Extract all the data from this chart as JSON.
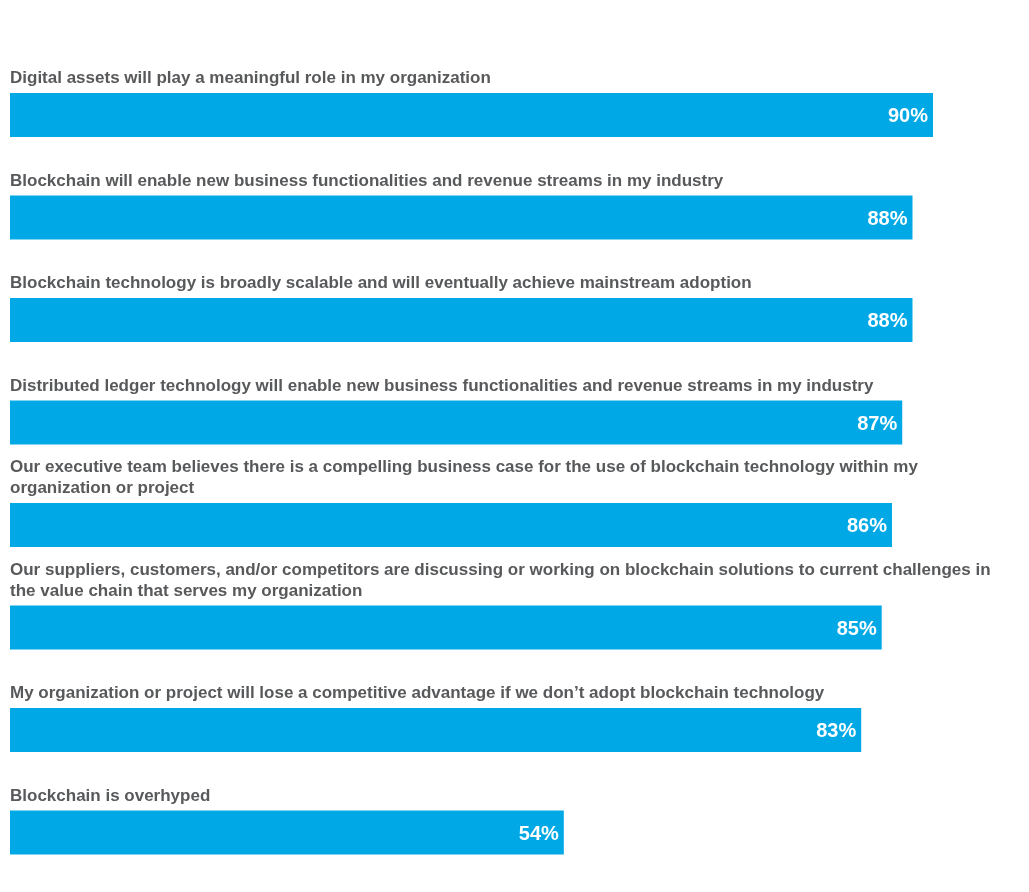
{
  "chart_data": {
    "type": "bar",
    "orientation": "horizontal",
    "categories": [
      "Digital assets will play a meaningful role in my organization",
      "Blockchain will enable new business functionalities and revenue streams in my industry",
      "Blockchain technology is broadly scalable and will eventually achieve mainstream adoption",
      "Distributed ledger technology will enable new business functionalities and revenue streams in my industry",
      "Our executive team believes there is a compelling business case for the use of blockchain technology within my organization or project",
      "Our suppliers, customers, and/or competitors are discussing or working on blockchain solutions to current challenges in the value chain that serves my organization",
      "My organization or project will lose a competitive advantage if we don’t adopt blockchain technology",
      "Blockchain is overhyped"
    ],
    "values": [
      90,
      88,
      88,
      87,
      86,
      85,
      83,
      54
    ],
    "value_labels": [
      "90%",
      "88%",
      "88%",
      "87%",
      "86%",
      "85%",
      "83%",
      "54%"
    ],
    "color": "#00a9e6"
  }
}
